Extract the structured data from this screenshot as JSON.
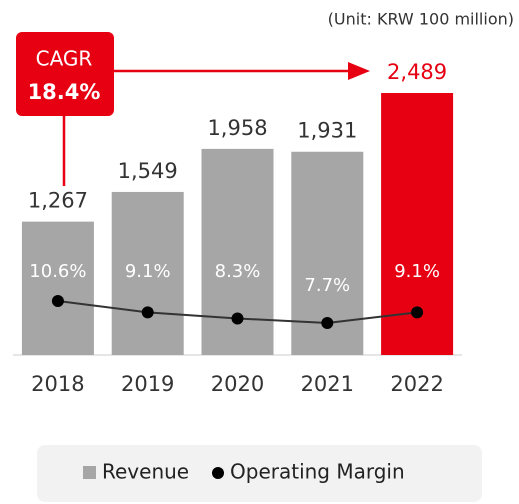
{
  "chart_data": {
    "type": "bar_line",
    "unit_note": "(Unit: KRW 100 million)",
    "annotation": {
      "label": "CAGR",
      "value": "18.4%"
    },
    "categories": [
      "2018",
      "2019",
      "2020",
      "2021",
      "2022"
    ],
    "series": [
      {
        "name": "Revenue",
        "colors": [
          "#a6a6a6",
          "#a6a6a6",
          "#a6a6a6",
          "#a6a6a6",
          "#e60012"
        ],
        "values": [
          1267,
          1549,
          1958,
          1931,
          2489
        ],
        "value_labels": [
          "1,267",
          "1,549",
          "1,958",
          "1,931",
          "2,489"
        ]
      },
      {
        "name": "Operating Margin",
        "color": "#333333",
        "values": [
          10.6,
          9.1,
          8.3,
          7.7,
          9.1
        ],
        "value_labels": [
          "10.6%",
          "9.1%",
          "8.3%",
          "7.7%",
          "9.1%"
        ]
      }
    ]
  }
}
